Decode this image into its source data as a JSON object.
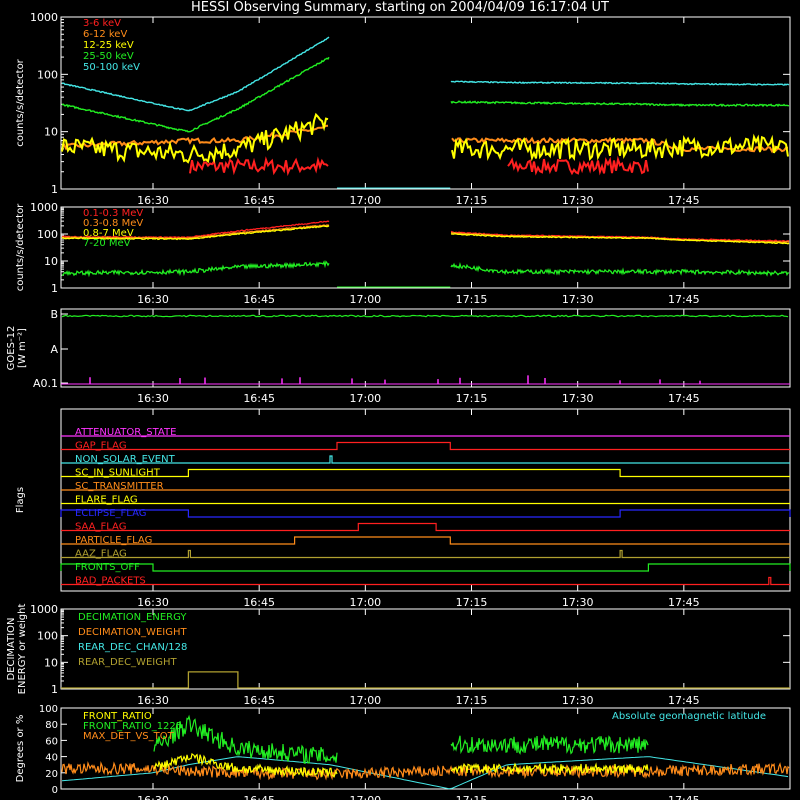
{
  "title": "HESSI Observing Summary, starting on 2004/04/09 16:17:04 UT",
  "colors": {
    "red": "#ff2020",
    "orange": "#ff8c1a",
    "yellow": "#ffff00",
    "green": "#22ee22",
    "cyan": "#44e6e6",
    "magenta": "#ff33ff",
    "blue": "#2828ff",
    "olive": "#b0a030",
    "frame": "#ffffff",
    "background": "#000000"
  },
  "x_axis": {
    "ticks": [
      "16:30",
      "16:45",
      "17:00",
      "17:15",
      "17:30",
      "17:45"
    ]
  },
  "panels": [
    {
      "id": "energy-rates",
      "ylabel": "counts/s/detector",
      "yticks": [
        "1",
        "10",
        "100",
        "1000"
      ],
      "ylim": [
        1,
        1000
      ]
    },
    {
      "id": "high-energy-rates",
      "ylabel": "counts/s/detector",
      "yticks": [
        "1",
        "10",
        "100",
        "1000"
      ],
      "ylim": [
        1,
        1000
      ]
    },
    {
      "id": "goes",
      "ylabel_lines": [
        "GOES-12",
        "[W m⁻²]"
      ],
      "yticks": [
        "A0.1",
        "A",
        "B"
      ]
    },
    {
      "id": "flags",
      "ylabel": "Flags"
    },
    {
      "id": "decimation",
      "ylabel_lines": [
        "DECIMATION",
        "ENERGY or weight"
      ],
      "yticks": [
        "1",
        "10",
        "100",
        "1000"
      ],
      "ylim": [
        1,
        1000
      ]
    },
    {
      "id": "ratios",
      "ylabel": "Degrees or %",
      "yticks": [
        "0",
        "20",
        "40",
        "60",
        "80",
        "100"
      ],
      "ylim": [
        0,
        100
      ]
    }
  ],
  "chart_data": [
    {
      "type": "line",
      "title": "energy-rates",
      "ylog": true,
      "x": [
        "16:17",
        "16:35",
        "16:42",
        "16:55",
        "16:56",
        "17:12",
        "17:20",
        "17:40",
        "17:45",
        "18:00"
      ],
      "series": [
        {
          "name": "3-6 keV",
          "color": "#ff2020",
          "values": [
            null,
            2.5,
            2.5,
            2.5,
            null,
            null,
            2.5,
            2.5,
            null,
            null
          ]
        },
        {
          "name": "6-12 keV",
          "color": "#ff8c1a",
          "values": [
            5.5,
            7,
            7,
            12,
            null,
            7,
            7,
            7,
            5,
            5
          ]
        },
        {
          "name": "12-25 keV",
          "color": "#ffff00",
          "values": [
            5.5,
            4,
            5,
            16,
            null,
            5,
            5,
            5,
            5.5,
            5.5
          ]
        },
        {
          "name": "25-50 keV",
          "color": "#22ee22",
          "values": [
            30,
            10,
            25,
            200,
            null,
            33,
            32,
            30,
            29,
            29
          ]
        },
        {
          "name": "50-100 keV",
          "color": "#44e6e6",
          "values": [
            70,
            23,
            50,
            450,
            null,
            75,
            72,
            70,
            68,
            66
          ]
        }
      ]
    },
    {
      "type": "line",
      "title": "high-energy-rates",
      "ylog": true,
      "x": [
        "16:17",
        "16:35",
        "16:42",
        "16:55",
        "16:56",
        "17:12",
        "17:20",
        "17:40",
        "17:45",
        "18:00"
      ],
      "series": [
        {
          "name": "0.1-0.3 MeV",
          "color": "#ff2020",
          "values": [
            80,
            75,
            130,
            300,
            null,
            120,
            90,
            75,
            65,
            55
          ]
        },
        {
          "name": "0.3-0.8 MeV",
          "color": "#ff8c1a",
          "values": [
            75,
            70,
            110,
            220,
            null,
            110,
            85,
            70,
            60,
            50
          ]
        },
        {
          "name": "0.8-7 MeV",
          "color": "#ffff00",
          "values": [
            70,
            65,
            100,
            200,
            null,
            100,
            80,
            70,
            60,
            45
          ]
        },
        {
          "name": "7-20 MeV",
          "color": "#22ee22",
          "values": [
            3.5,
            4,
            6,
            8,
            null,
            7,
            4,
            4,
            4,
            3.5
          ]
        }
      ]
    },
    {
      "type": "line",
      "title": "goes",
      "x": [
        "16:17",
        "17:00",
        "18:00"
      ],
      "series": [
        {
          "color": "#22ee22",
          "values": [
            "B",
            "B",
            "B"
          ]
        },
        {
          "color": "#ff33ff",
          "values": [
            "A0.1",
            "A0.1",
            "A0.1"
          ]
        }
      ]
    },
    {
      "type": "line",
      "title": "flags",
      "series": [
        {
          "name": "ATTENUATOR_STATE",
          "color": "#ff33ff",
          "on": []
        },
        {
          "name": "GAP_FLAG",
          "color": "#ff2020",
          "on": [
            [
              "16:56",
              "17:12"
            ]
          ]
        },
        {
          "name": "NON_SOLAR_EVENT",
          "color": "#44e6e6",
          "on": [
            [
              "16:55",
              "16:55"
            ]
          ]
        },
        {
          "name": "SC_IN_SUNLIGHT",
          "color": "#ffff00",
          "on": [
            [
              "16:35",
              "17:36"
            ]
          ]
        },
        {
          "name": "SC_TRANSMITTER",
          "color": "#ff8c1a",
          "on": []
        },
        {
          "name": "FLARE_FLAG",
          "color": "#ffff00",
          "on": []
        },
        {
          "name": "ECLIPSE_FLAG",
          "color": "#2828ff",
          "on": [
            [
              "16:17",
              "16:35"
            ],
            [
              "17:36",
              "18:00"
            ]
          ]
        },
        {
          "name": "SAA_FLAG",
          "color": "#ff2020",
          "on": [
            [
              "16:59",
              "17:10"
            ]
          ]
        },
        {
          "name": "PARTICLE_FLAG",
          "color": "#ff8c1a",
          "on": [
            [
              "16:50",
              "17:12"
            ]
          ]
        },
        {
          "name": "AAZ_FLAG",
          "color": "#b0a030",
          "on": [
            [
              "16:35",
              "16:35"
            ],
            [
              "17:36",
              "17:36"
            ]
          ]
        },
        {
          "name": "FRONTS_OFF",
          "color": "#22ee22",
          "on": [
            [
              "16:17",
              "16:30"
            ],
            [
              "17:40",
              "18:00"
            ]
          ]
        },
        {
          "name": "BAD_PACKETS",
          "color": "#ff2020",
          "on": [
            [
              "17:57",
              "17:57"
            ]
          ]
        }
      ]
    },
    {
      "type": "line",
      "title": "decimation",
      "ylog": true,
      "series": [
        {
          "name": "DECIMATION_ENERGY",
          "color": "#22ee22",
          "values": []
        },
        {
          "name": "DECIMATION_WEIGHT",
          "color": "#ff8c1a",
          "values": []
        },
        {
          "name": "REAR_DEC_CHAN/128",
          "color": "#44e6e6",
          "values": []
        },
        {
          "name": "REAR_DEC_WEIGHT",
          "color": "#b0a030",
          "x": [
            "16:17",
            "16:35",
            "16:35",
            "16:42",
            "16:42",
            "18:00"
          ],
          "values": [
            1,
            1,
            4,
            4,
            1,
            1
          ]
        }
      ]
    },
    {
      "type": "line",
      "title": "ratios",
      "x": [
        "16:17",
        "16:30",
        "16:35",
        "16:42",
        "16:55",
        "17:12",
        "17:20",
        "17:40",
        "18:00"
      ],
      "series": [
        {
          "name": "FRONT_RATIO",
          "color": "#ffff00",
          "values": [
            null,
            25,
            40,
            25,
            20,
            25,
            25,
            25,
            null
          ]
        },
        {
          "name": "FRONT_RATIO_1225",
          "color": "#22ee22",
          "values": [
            null,
            50,
            80,
            50,
            40,
            55,
            55,
            55,
            null
          ]
        },
        {
          "name": "MAX_DET_VS_TOT",
          "color": "#ff8c1a",
          "values": [
            25,
            25,
            22,
            20,
            18,
            22,
            22,
            22,
            25
          ]
        },
        {
          "name": "Absolute geomagnetic latitude",
          "color": "#44e6e6",
          "values": [
            10,
            20,
            30,
            40,
            30,
            0,
            30,
            40,
            15
          ]
        }
      ]
    }
  ]
}
